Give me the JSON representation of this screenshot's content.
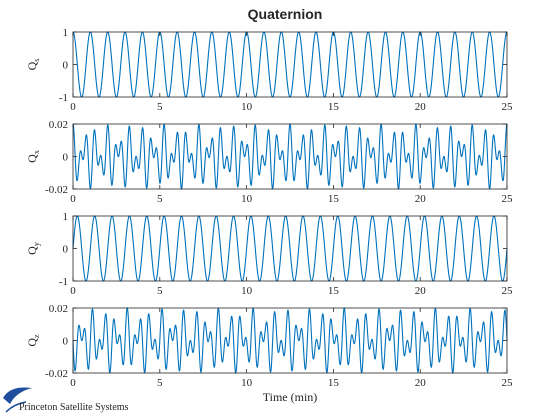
{
  "figure_title": "Quaternion",
  "logo_text": "Princeton Satellite Systems",
  "line_color": "#0072BD",
  "axis_color": "#262626",
  "chart_data": [
    {
      "type": "line",
      "ylabel": "Q_s",
      "ylabel_main": "Q",
      "ylabel_sub": "s",
      "xlabel": "",
      "xlim": [
        0,
        25
      ],
      "ylim": [
        -1,
        1
      ],
      "xticks": [
        0,
        5,
        10,
        15,
        20,
        25
      ],
      "yticks": [
        -1,
        0,
        1
      ],
      "ytick_labels": [
        "-1",
        "0",
        "1"
      ],
      "grid": false,
      "signal": {
        "kind": "cosine",
        "amplitude": 1.0,
        "cycles": 25,
        "phase_deg": 0
      }
    },
    {
      "type": "line",
      "ylabel": "Q_x",
      "ylabel_main": "Q",
      "ylabel_sub": "x",
      "xlabel": "",
      "xlim": [
        0,
        25
      ],
      "ylim": [
        -0.02,
        0.02
      ],
      "xticks": [
        0,
        5,
        10,
        15,
        20,
        25
      ],
      "yticks": [
        -0.02,
        0,
        0.02
      ],
      "ytick_labels": [
        "-0.02",
        "0",
        "0.02"
      ],
      "grid": false,
      "signal": {
        "kind": "two-tone",
        "amplitude": 0.02,
        "cycles_a": 38,
        "cycles_b": 62,
        "phase_deg": 0
      }
    },
    {
      "type": "line",
      "ylabel": "Q_y",
      "ylabel_main": "Q",
      "ylabel_sub": "y",
      "xlabel": "",
      "xlim": [
        0,
        25
      ],
      "ylim": [
        -1,
        1
      ],
      "xticks": [
        0,
        5,
        10,
        15,
        20,
        25
      ],
      "yticks": [
        -1,
        0,
        1
      ],
      "ytick_labels": [
        "-1",
        "0",
        "1"
      ],
      "grid": false,
      "signal": {
        "kind": "sine",
        "amplitude": 1.0,
        "cycles": 25,
        "phase_deg": 0
      }
    },
    {
      "type": "line",
      "ylabel": "Q_z",
      "ylabel_main": "Q",
      "ylabel_sub": "z",
      "xlabel": "Time (min)",
      "xlim": [
        0,
        25
      ],
      "ylim": [
        -0.02,
        0.02
      ],
      "xticks": [
        0,
        5,
        10,
        15,
        20,
        25
      ],
      "yticks": [
        -0.02,
        0,
        0.02
      ],
      "ytick_labels": [
        "-0.02",
        "0",
        "0.02"
      ],
      "grid": false,
      "signal": {
        "kind": "two-tone",
        "amplitude": 0.02,
        "cycles_a": 38,
        "cycles_b": 62,
        "phase_deg": 90
      }
    }
  ]
}
